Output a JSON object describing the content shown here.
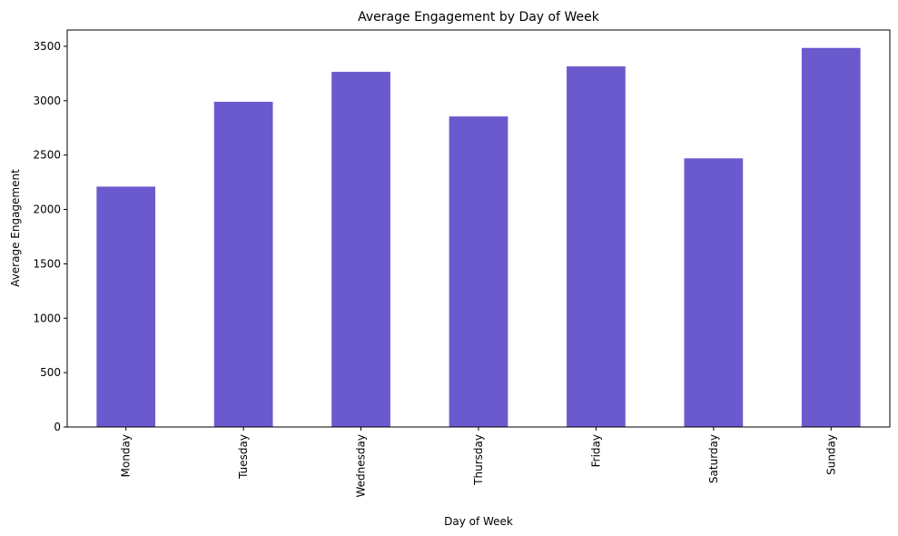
{
  "chart_data": {
    "type": "bar",
    "title": "Average Engagement by Day of Week",
    "xlabel": "Day of Week",
    "ylabel": "Average Engagement",
    "categories": [
      "Monday",
      "Tuesday",
      "Wednesday",
      "Thursday",
      "Friday",
      "Saturday",
      "Sunday"
    ],
    "values": [
      2210,
      2990,
      3265,
      2855,
      3315,
      2470,
      3485
    ],
    "yticks": [
      0,
      500,
      1000,
      1500,
      2000,
      2500,
      3000,
      3500
    ],
    "ylim": [
      0,
      3650
    ],
    "grid": false,
    "legend": "none",
    "bar_color": "#6a5acd"
  }
}
